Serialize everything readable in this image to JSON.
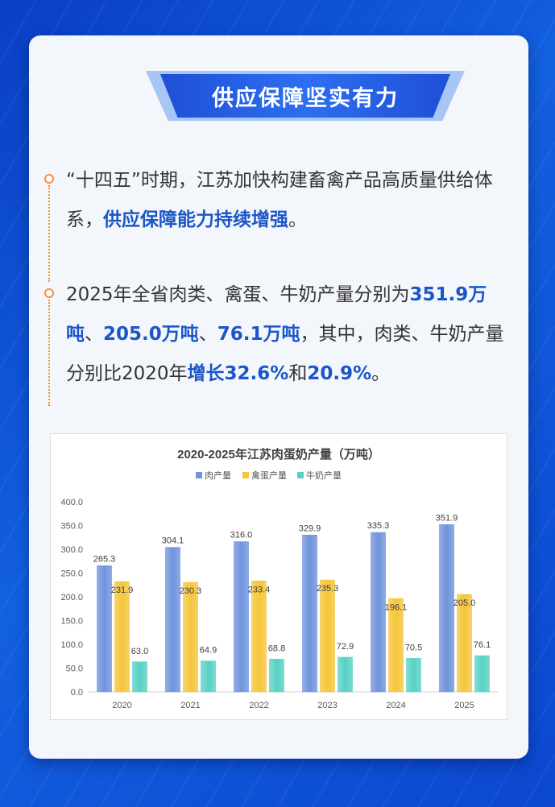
{
  "banner": {
    "title": "供应保障坚实有力"
  },
  "paragraph1": {
    "text": "“十四五”时期，江苏加快构建畜禽产品高质量供给体系，",
    "highlight": "供应保障能力持续增强",
    "end": "。"
  },
  "paragraph2": {
    "t1": "2025年全省肉类、禽蛋、牛奶产量分别为",
    "h1": "351.9万吨",
    "s1": "、",
    "h2": "205.0万吨",
    "s2": "、",
    "h3": "76.1万吨",
    "t2": "，其中，肉类、牛奶产量分别比2020年",
    "h4": "增长32.6%",
    "t3": "和",
    "h5": "20.9%",
    "t4": "。"
  },
  "chart_data": {
    "type": "bar",
    "title": "2020-2025年江苏肉蛋奶产量（万吨）",
    "categories": [
      "2020",
      "2021",
      "2022",
      "2023",
      "2024",
      "2025"
    ],
    "series": [
      {
        "name": "肉产量",
        "values": [
          265.3,
          304.1,
          316.0,
          329.9,
          335.3,
          351.9
        ],
        "color": "#6f93dc"
      },
      {
        "name": "禽蛋产量",
        "values": [
          231.9,
          230.3,
          233.4,
          235.3,
          196.1,
          205.0
        ],
        "color": "#f5c53a"
      },
      {
        "name": "牛奶产量",
        "values": [
          63.0,
          64.9,
          68.8,
          72.9,
          70.5,
          76.1
        ],
        "color": "#57d1c4"
      }
    ],
    "ylim": [
      0,
      400
    ],
    "yticks": [
      "0.0",
      "50.0",
      "100.0",
      "150.0",
      "200.0",
      "250.0",
      "300.0",
      "350.0",
      "400.0"
    ],
    "legend": "top-center",
    "grid": false
  }
}
